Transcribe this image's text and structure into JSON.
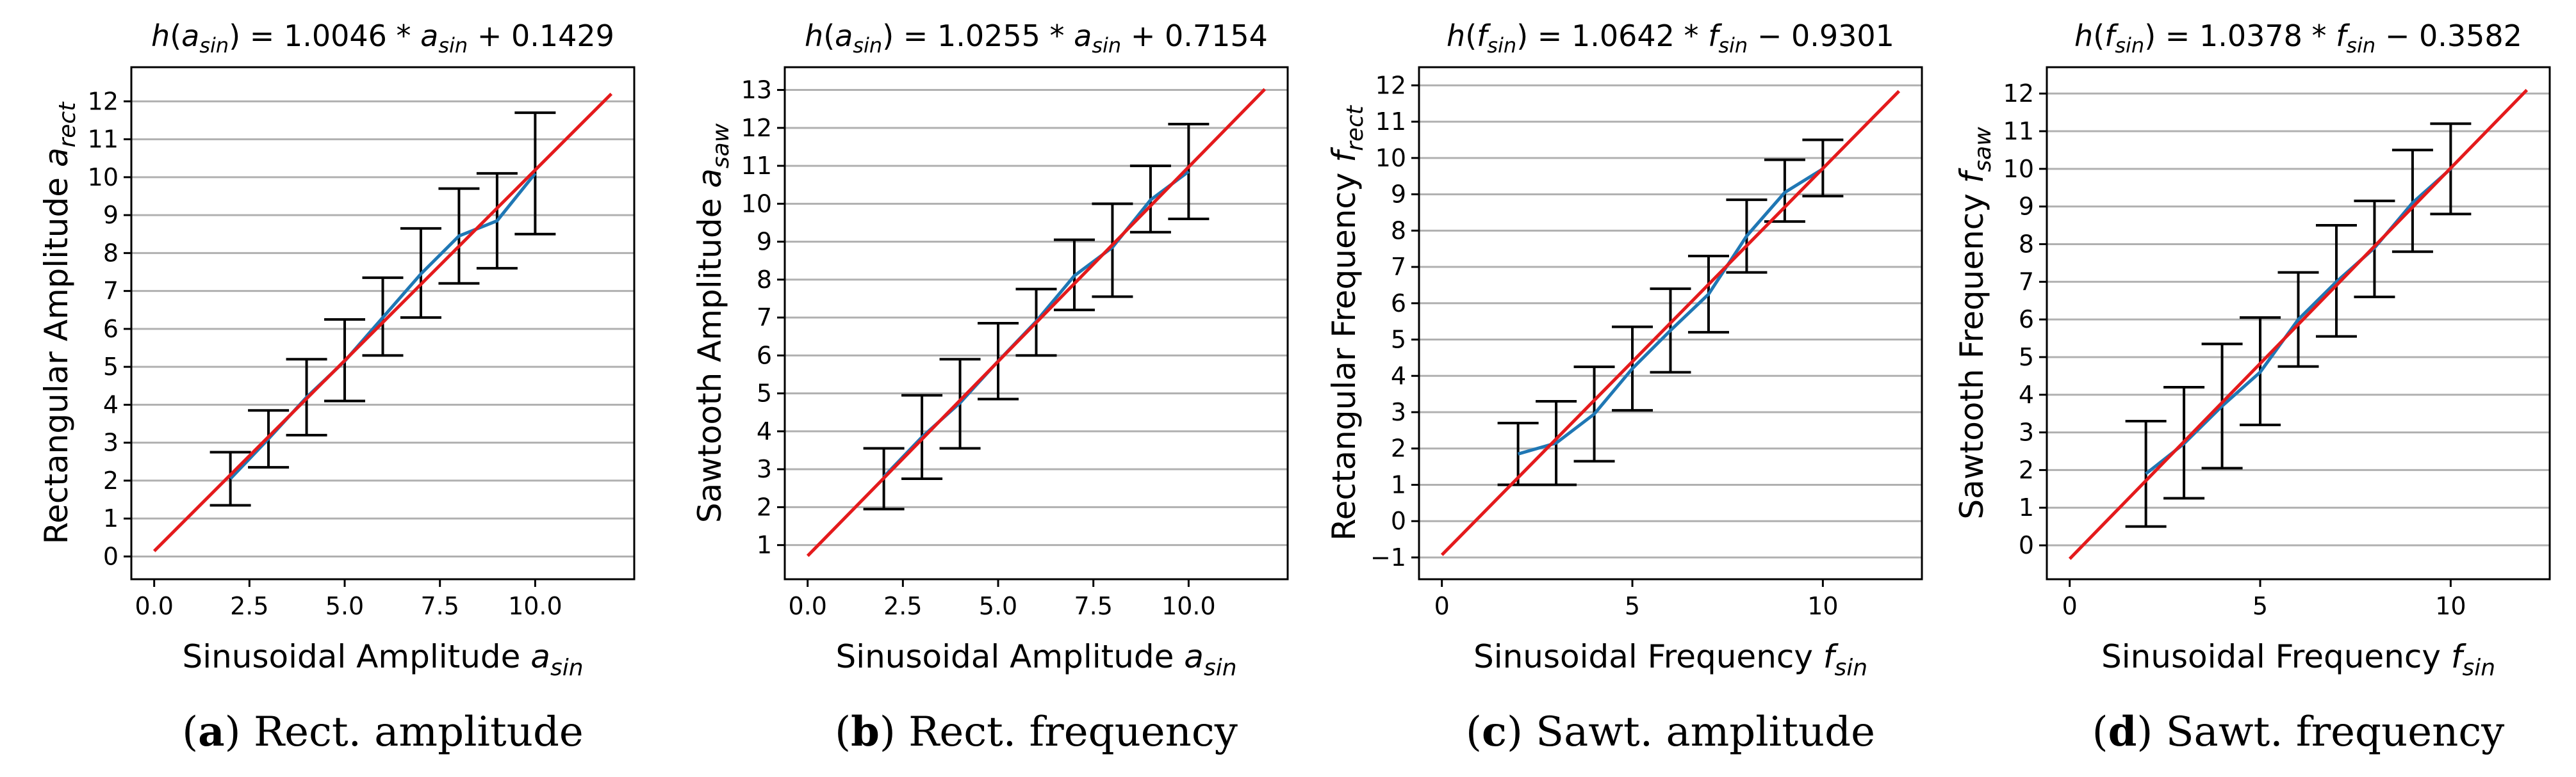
{
  "chart_data": [
    {
      "type": "line",
      "title": "h(a_sin) = 1.0046 * a_sin + 0.1429",
      "title_parts": {
        "f": "h",
        "arg": "a",
        "arg_sub": "sin",
        "rhs": " = 1.0046 * ",
        "var": "a",
        "var_sub": "sin",
        "tail": " + 0.1429"
      },
      "xlabel": {
        "text": "Sinusoidal Amplitude ",
        "var": "a",
        "sub": "sin"
      },
      "ylabel": {
        "text": "Rectangular Amplitude ",
        "var": "a",
        "sub": "rect"
      },
      "caption": {
        "letter": "a",
        "text": " Rect. amplitude"
      },
      "xlim": [
        -0.6,
        12.6
      ],
      "ylim": [
        -0.6,
        12.9
      ],
      "xticks": [
        0,
        2.5,
        5,
        7.5,
        10
      ],
      "xticklabels": [
        "0.0",
        "2.5",
        "5.0",
        "7.5",
        "10.0"
      ],
      "yticks": [
        0,
        1,
        2,
        3,
        4,
        5,
        6,
        7,
        8,
        9,
        10,
        11,
        12
      ],
      "yticklabels": [
        "0",
        "1",
        "2",
        "3",
        "4",
        "5",
        "6",
        "7",
        "8",
        "9",
        "10",
        "11",
        "12"
      ],
      "series": [
        {
          "name": "mean",
          "color": "#1f77b4",
          "x": [
            2,
            3,
            4,
            5,
            6,
            7,
            8,
            9,
            10
          ],
          "y": [
            2.05,
            3.1,
            4.2,
            5.15,
            6.3,
            7.45,
            8.45,
            8.85,
            10.1
          ]
        },
        {
          "name": "fit",
          "color": "#e41a1c",
          "x": [
            0,
            12
          ],
          "y": [
            0.1429,
            12.198
          ]
        }
      ],
      "errorbars": {
        "x": [
          2,
          3,
          4,
          5,
          6,
          7,
          8,
          9,
          10
        ],
        "lower": [
          1.35,
          2.35,
          3.2,
          4.1,
          5.3,
          6.3,
          7.2,
          7.6,
          8.5
        ],
        "upper": [
          2.75,
          3.85,
          5.2,
          6.25,
          7.35,
          8.65,
          9.7,
          10.1,
          11.7
        ]
      }
    },
    {
      "type": "line",
      "title": "h(a_sin) = 1.0255 * a_sin + 0.7154",
      "title_parts": {
        "f": "h",
        "arg": "a",
        "arg_sub": "sin",
        "rhs": " = 1.0255 * ",
        "var": "a",
        "var_sub": "sin",
        "tail": " + 0.7154"
      },
      "xlabel": {
        "text": "Sinusoidal Amplitude ",
        "var": "a",
        "sub": "sin"
      },
      "ylabel": {
        "text": "Sawtooth Amplitude ",
        "var": "a",
        "sub": "saw"
      },
      "caption": {
        "letter": "b",
        "text": " Rect. frequency"
      },
      "xlim": [
        -0.6,
        12.6
      ],
      "ylim": [
        0.1,
        13.6
      ],
      "xticks": [
        0,
        2.5,
        5,
        7.5,
        10
      ],
      "xticklabels": [
        "0.0",
        "2.5",
        "5.0",
        "7.5",
        "10.0"
      ],
      "yticks": [
        1,
        2,
        3,
        4,
        5,
        6,
        7,
        8,
        9,
        10,
        11,
        12,
        13
      ],
      "yticklabels": [
        "1",
        "2",
        "3",
        "4",
        "5",
        "6",
        "7",
        "8",
        "9",
        "10",
        "11",
        "12",
        "13"
      ],
      "series": [
        {
          "name": "mean",
          "color": "#1f77b4",
          "x": [
            2,
            3,
            4,
            5,
            6,
            7,
            8,
            9,
            10
          ],
          "y": [
            2.8,
            3.85,
            4.75,
            5.85,
            6.9,
            8.1,
            8.85,
            10.1,
            10.85
          ]
        },
        {
          "name": "fit",
          "color": "#e41a1c",
          "x": [
            0,
            12
          ],
          "y": [
            0.7154,
            13.02
          ]
        }
      ],
      "errorbars": {
        "x": [
          2,
          3,
          4,
          5,
          6,
          7,
          8,
          9,
          10
        ],
        "lower": [
          1.95,
          2.75,
          3.55,
          4.85,
          6.0,
          7.2,
          7.55,
          9.25,
          9.6
        ],
        "upper": [
          3.55,
          4.95,
          5.9,
          6.85,
          7.75,
          9.05,
          10.0,
          11.0,
          12.1
        ]
      }
    },
    {
      "type": "line",
      "title": "h(f_sin) = 1.0642 * f_sin − 0.9301",
      "title_parts": {
        "f": "h",
        "arg": "f",
        "arg_sub": "sin",
        "rhs": " = 1.0642 * ",
        "var": "f",
        "var_sub": "sin",
        "tail": " − 0.9301"
      },
      "xlabel": {
        "text": "Sinusoidal Frequency ",
        "var": "f",
        "sub": "sin"
      },
      "ylabel": {
        "text": "Rectangular Frequency ",
        "var": "f",
        "sub": "rect"
      },
      "caption": {
        "letter": "c",
        "text": " Sawt. amplitude"
      },
      "xlim": [
        -0.6,
        12.6
      ],
      "ylim": [
        -1.6,
        12.5
      ],
      "xticks": [
        0,
        5,
        10
      ],
      "xticklabels": [
        "0",
        "5",
        "10"
      ],
      "yticks": [
        -1,
        0,
        1,
        2,
        3,
        4,
        5,
        6,
        7,
        8,
        9,
        10,
        11,
        12
      ],
      "yticklabels": [
        "−1",
        "0",
        "1",
        "2",
        "3",
        "4",
        "5",
        "6",
        "7",
        "8",
        "9",
        "10",
        "11",
        "12"
      ],
      "series": [
        {
          "name": "mean",
          "color": "#1f77b4",
          "x": [
            2,
            3,
            4,
            5,
            6,
            7,
            8,
            9,
            10
          ],
          "y": [
            1.85,
            2.15,
            2.95,
            4.2,
            5.25,
            6.25,
            7.85,
            9.05,
            9.7
          ]
        },
        {
          "name": "fit",
          "color": "#e41a1c",
          "x": [
            0,
            12
          ],
          "y": [
            -0.9301,
            11.84
          ]
        }
      ],
      "errorbars": {
        "x": [
          2,
          3,
          4,
          5,
          6,
          7,
          8,
          9,
          10
        ],
        "lower": [
          1.0,
          1.0,
          1.65,
          3.05,
          4.1,
          5.2,
          6.85,
          8.25,
          8.95
        ],
        "upper": [
          2.7,
          3.3,
          4.25,
          5.35,
          6.4,
          7.3,
          8.85,
          9.95,
          10.5
        ]
      }
    },
    {
      "type": "line",
      "title": "h(f_sin) = 1.0378 * f_sin − 0.3582",
      "title_parts": {
        "f": "h",
        "arg": "f",
        "arg_sub": "sin",
        "rhs": " = 1.0378 * ",
        "var": "f",
        "var_sub": "sin",
        "tail": " − 0.3582"
      },
      "xlabel": {
        "text": "Sinusoidal Frequency ",
        "var": "f",
        "sub": "sin"
      },
      "ylabel": {
        "text": "Sawtooth Frequency ",
        "var": "f",
        "sub": "saw"
      },
      "caption": {
        "letter": "d",
        "text": " Sawt. frequency"
      },
      "xlim": [
        -0.6,
        12.6
      ],
      "ylim": [
        -0.9,
        12.7
      ],
      "xticks": [
        0,
        5,
        10
      ],
      "xticklabels": [
        "0",
        "5",
        "10"
      ],
      "yticks": [
        0,
        1,
        2,
        3,
        4,
        5,
        6,
        7,
        8,
        9,
        10,
        11,
        12
      ],
      "yticklabels": [
        "0",
        "1",
        "2",
        "3",
        "4",
        "5",
        "6",
        "7",
        "8",
        "9",
        "10",
        "11",
        "12"
      ],
      "series": [
        {
          "name": "mean",
          "color": "#1f77b4",
          "x": [
            2,
            3,
            4,
            5,
            6,
            7,
            8,
            9,
            10
          ],
          "y": [
            1.9,
            2.7,
            3.7,
            4.6,
            6.0,
            7.0,
            7.9,
            9.1,
            10.0
          ]
        },
        {
          "name": "fit",
          "color": "#e41a1c",
          "x": [
            0,
            12
          ],
          "y": [
            -0.3582,
            12.095
          ]
        }
      ],
      "errorbars": {
        "x": [
          2,
          3,
          4,
          5,
          6,
          7,
          8,
          9,
          10
        ],
        "lower": [
          0.5,
          1.25,
          2.05,
          3.2,
          4.75,
          5.55,
          6.6,
          7.8,
          8.8
        ],
        "upper": [
          3.3,
          4.2,
          5.35,
          6.05,
          7.25,
          8.5,
          9.15,
          10.5,
          11.2
        ]
      }
    }
  ]
}
